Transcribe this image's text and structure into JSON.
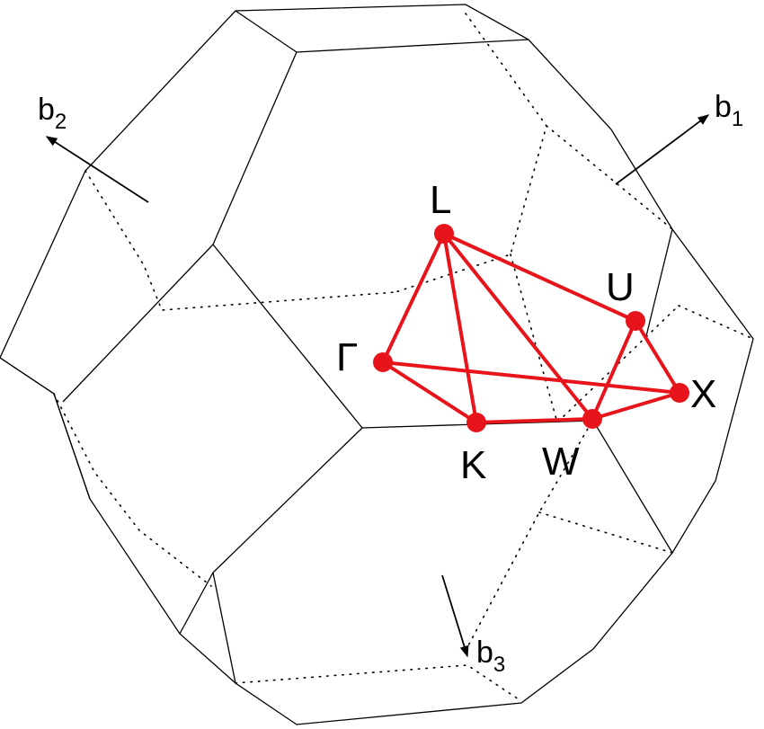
{
  "colors": {
    "path": "#e8141b",
    "edges": "#000000",
    "background": "#ffffff"
  },
  "points": [
    {
      "id": "L",
      "label": "L"
    },
    {
      "id": "U",
      "label": "U"
    },
    {
      "id": "Gamma",
      "label": "Γ"
    },
    {
      "id": "X",
      "label": "X"
    },
    {
      "id": "K",
      "label": "K"
    },
    {
      "id": "W",
      "label": "W"
    }
  ],
  "vectors": {
    "b1": {
      "base": "b",
      "sub": "1"
    },
    "b2": {
      "base": "b",
      "sub": "2"
    },
    "b3": {
      "base": "b",
      "sub": "3"
    }
  }
}
